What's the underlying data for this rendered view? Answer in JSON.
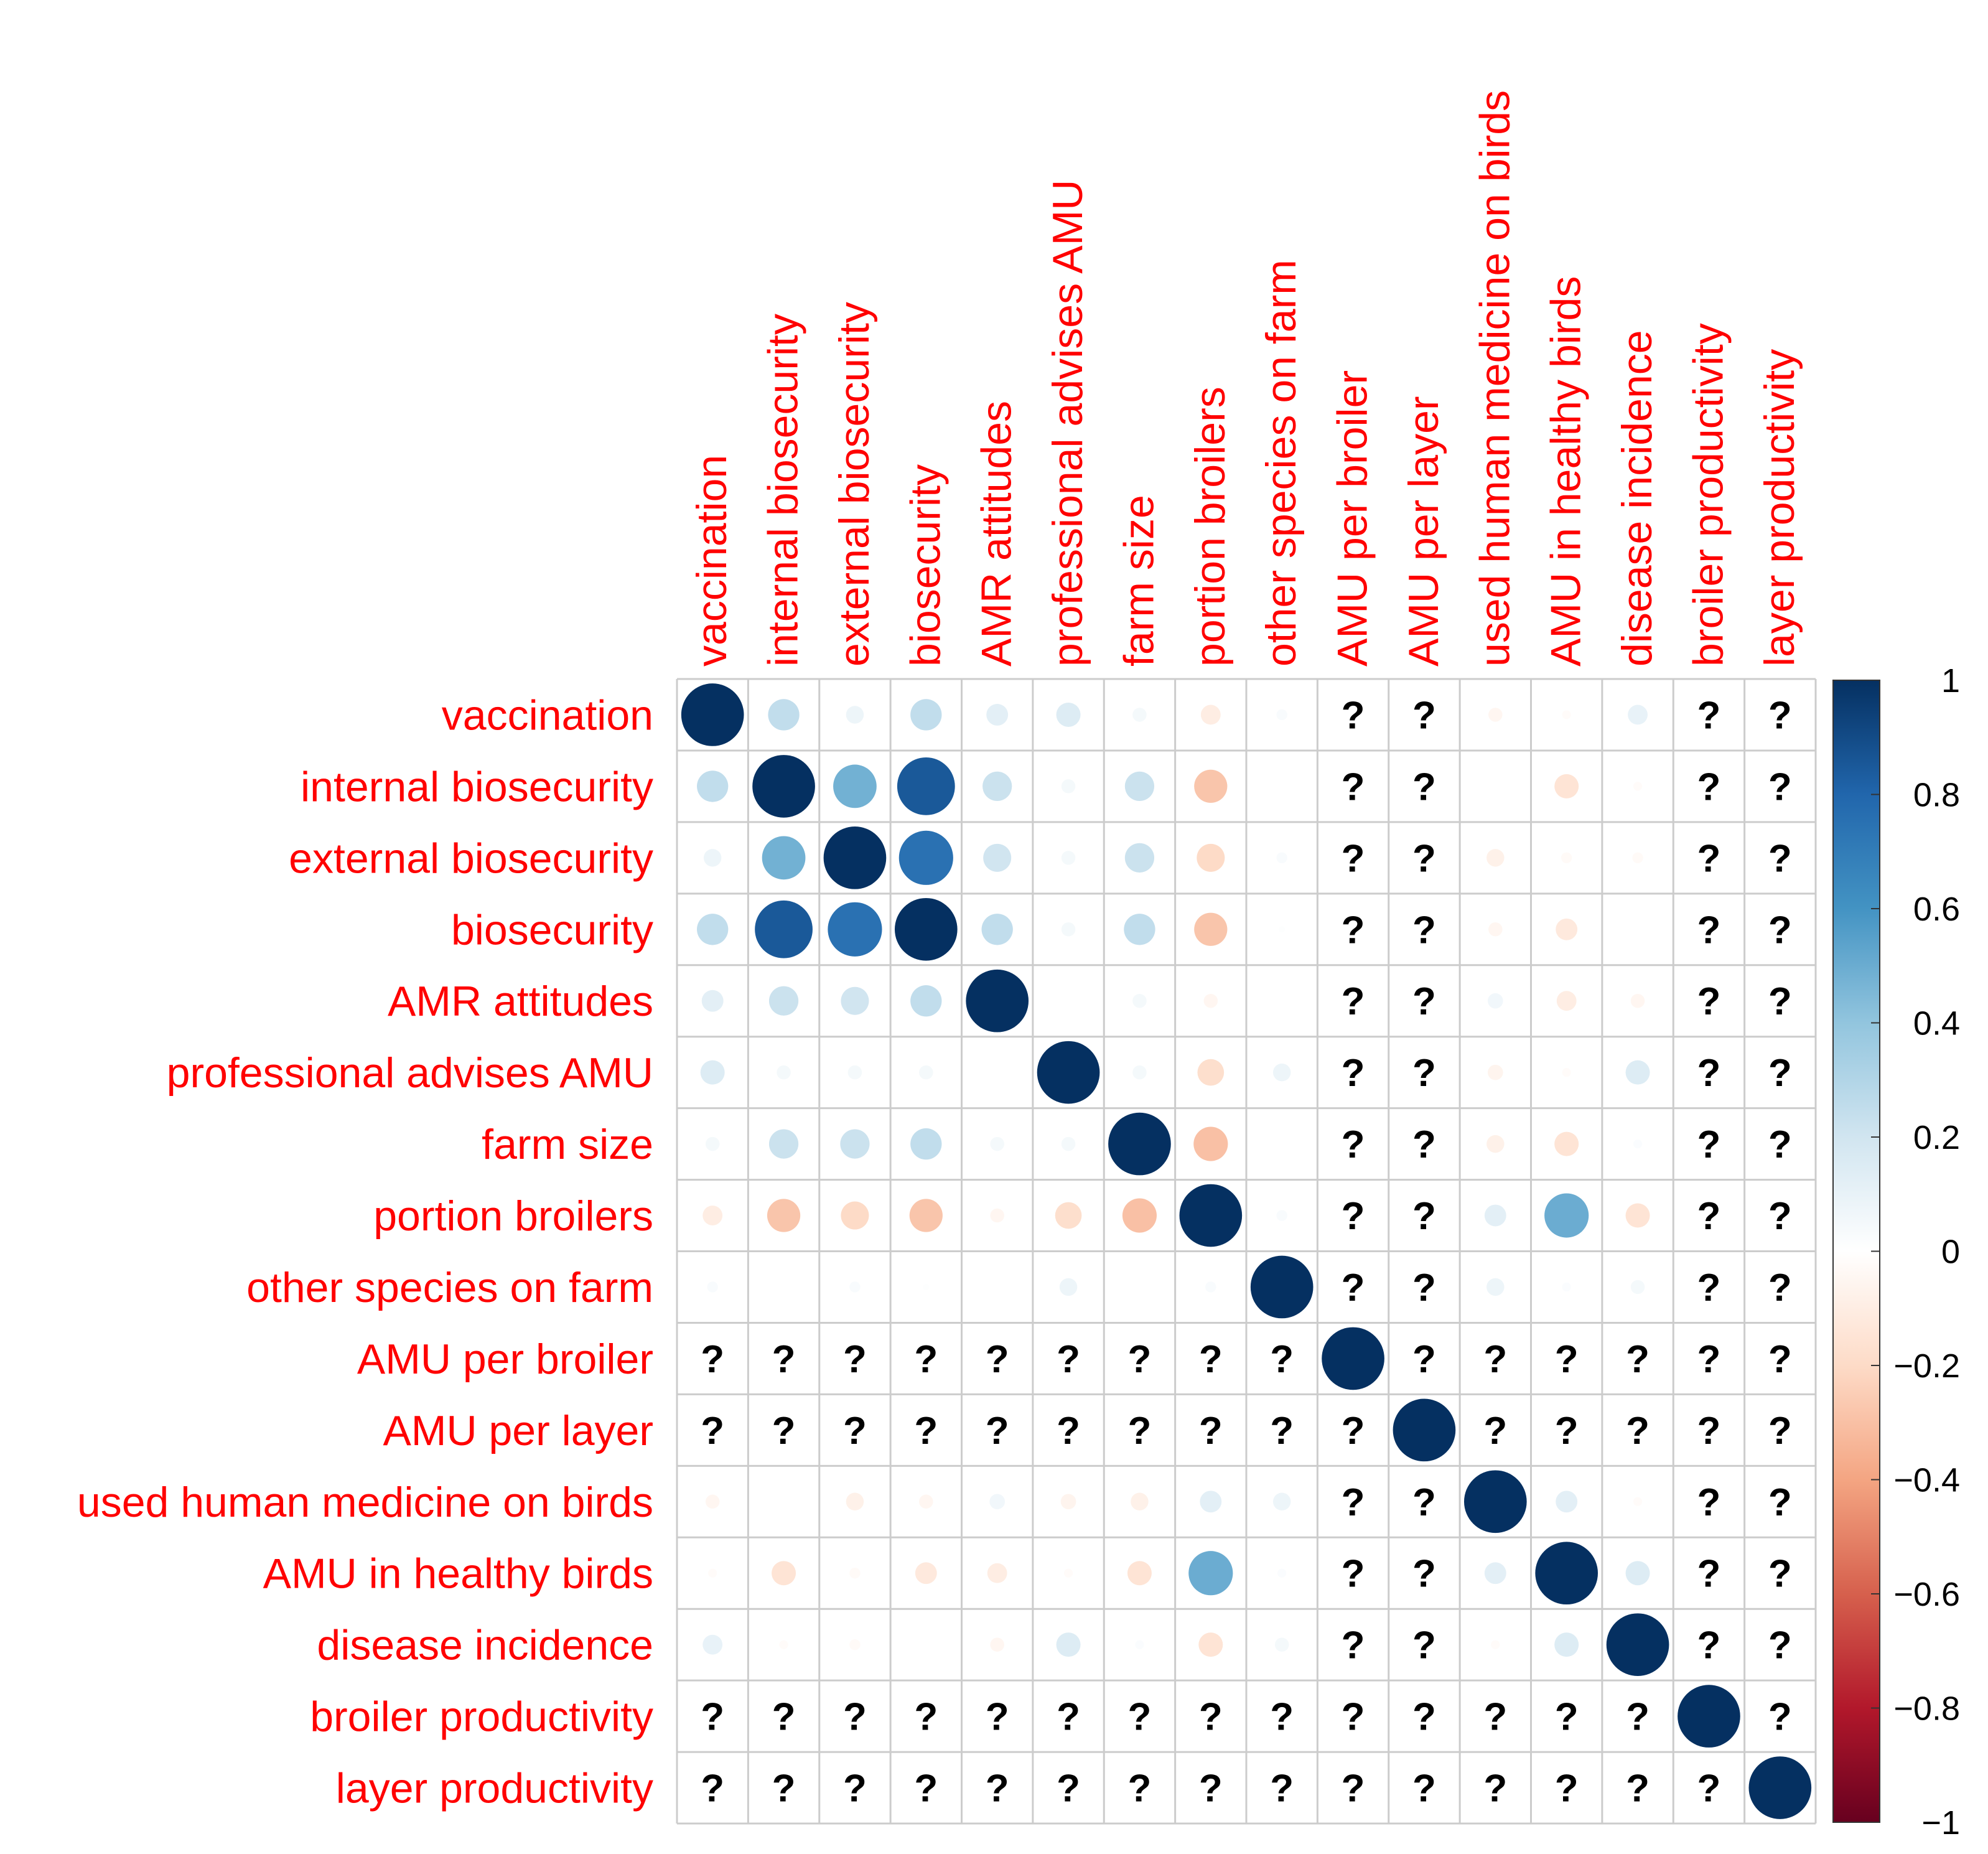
{
  "chart_data": {
    "type": "correlation-matrix",
    "variables": [
      "vaccination",
      "internal biosecurity",
      "external biosecurity",
      "biosecurity",
      "AMR attitudes",
      "professional advises AMU",
      "farm size",
      "portion broilers",
      "other species on farm",
      "AMU per broiler",
      "AMU per layer",
      "used human medicine on birds",
      "AMU in healthy birds",
      "disease incidence",
      "broiler productivity",
      "layer productivity"
    ],
    "missing_symbol": "?",
    "matrix": [
      [
        1,
        0.25,
        0.08,
        0.25,
        0.12,
        0.15,
        0.05,
        -0.1,
        0.03,
        null,
        null,
        -0.05,
        -0.02,
        0.1,
        null,
        null
      ],
      [
        0.25,
        1,
        0.48,
        0.85,
        0.22,
        0.05,
        0.22,
        -0.28,
        0,
        null,
        null,
        0,
        -0.15,
        -0.02,
        null,
        null
      ],
      [
        0.08,
        0.48,
        1,
        0.75,
        0.2,
        0.05,
        0.22,
        -0.2,
        0.03,
        null,
        null,
        -0.08,
        -0.03,
        -0.03,
        null,
        null
      ],
      [
        0.25,
        0.85,
        0.75,
        1,
        0.25,
        0.05,
        0.25,
        -0.28,
        0.01,
        null,
        null,
        -0.05,
        -0.12,
        0,
        null,
        null
      ],
      [
        0.12,
        0.22,
        0.2,
        0.25,
        1,
        0,
        0.05,
        -0.05,
        0,
        null,
        null,
        0.06,
        -0.1,
        -0.05,
        null,
        null
      ],
      [
        0.15,
        0.05,
        0.05,
        0.05,
        0,
        1,
        0.05,
        -0.18,
        0.08,
        null,
        null,
        -0.06,
        -0.02,
        0.15,
        null,
        null
      ],
      [
        0.05,
        0.22,
        0.22,
        0.25,
        0.05,
        0.05,
        1,
        -0.3,
        0,
        null,
        null,
        -0.08,
        -0.15,
        0.02,
        null,
        null
      ],
      [
        -0.1,
        -0.28,
        -0.2,
        -0.28,
        -0.05,
        -0.18,
        -0.3,
        1,
        0.03,
        null,
        null,
        0.12,
        0.5,
        -0.15,
        null,
        null
      ],
      [
        0.03,
        0,
        0.03,
        0.01,
        0,
        0.08,
        0,
        0.03,
        1,
        null,
        null,
        0.08,
        0.02,
        0.05,
        null,
        null
      ],
      [
        null,
        null,
        null,
        null,
        null,
        null,
        null,
        null,
        null,
        1,
        null,
        null,
        null,
        null,
        null,
        null
      ],
      [
        null,
        null,
        null,
        null,
        null,
        null,
        null,
        null,
        null,
        null,
        1,
        null,
        null,
        null,
        null,
        null
      ],
      [
        -0.05,
        0,
        -0.08,
        -0.05,
        0.06,
        -0.06,
        -0.08,
        0.12,
        0.08,
        null,
        null,
        1,
        0.12,
        -0.02,
        null,
        null
      ],
      [
        -0.02,
        -0.15,
        -0.03,
        -0.12,
        -0.1,
        -0.02,
        -0.15,
        0.5,
        0.02,
        null,
        null,
        0.12,
        1,
        0.15,
        null,
        null
      ],
      [
        0.1,
        -0.02,
        -0.03,
        0,
        -0.05,
        0.15,
        0.02,
        -0.15,
        0.05,
        null,
        null,
        -0.02,
        0.15,
        1,
        null,
        null
      ],
      [
        null,
        null,
        null,
        null,
        null,
        null,
        null,
        null,
        null,
        null,
        null,
        null,
        null,
        null,
        1,
        null
      ],
      [
        null,
        null,
        null,
        null,
        null,
        null,
        null,
        null,
        null,
        null,
        null,
        null,
        null,
        null,
        null,
        1
      ]
    ],
    "colorbar": {
      "range": [
        -1,
        1
      ],
      "ticks": [
        "1",
        "0.8",
        "0.6",
        "0.4",
        "0.2",
        "0",
        "−0.2",
        "−0.4",
        "−0.6",
        "−0.8",
        "−1"
      ],
      "palette": [
        "#67001F",
        "#B2182B",
        "#D6604D",
        "#F4A582",
        "#FDDBC7",
        "#FFFFFF",
        "#D1E5F0",
        "#92C5DE",
        "#4393C3",
        "#2166AC",
        "#053061"
      ]
    },
    "label_color": "#ff0000",
    "grid_color": "#cccccc"
  }
}
